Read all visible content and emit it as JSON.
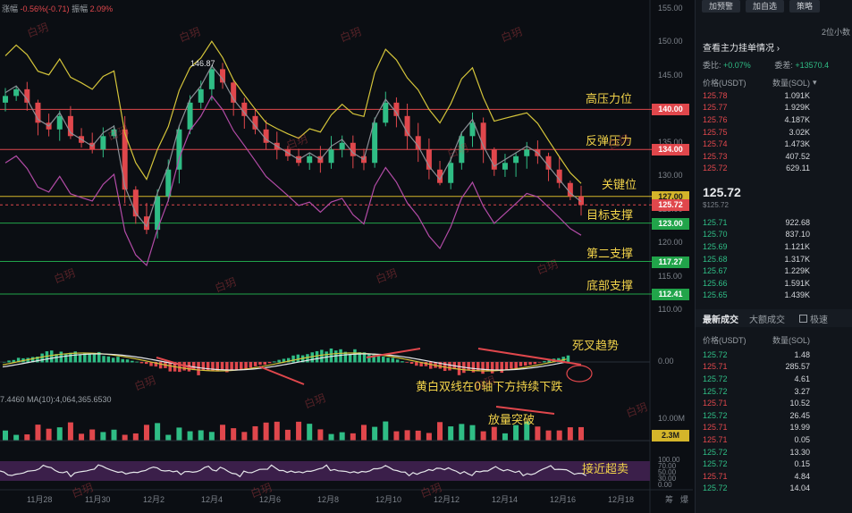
{
  "header": {
    "label_change": "涨幅",
    "change": "-0.56%(-0.71)",
    "label_amp": "振幅",
    "amp": "2.09%"
  },
  "price_axis": [
    "155.00",
    "150.00",
    "145.00",
    "140.00",
    "135.00",
    "130.00",
    "125.00",
    "120.00",
    "115.00",
    "110.00"
  ],
  "price_badges": [
    {
      "value": "140.00",
      "color": "#e0474c"
    },
    {
      "value": "134.00",
      "color": "#e0474c"
    },
    {
      "value": "127.00",
      "color": "#d4b52a"
    },
    {
      "value": "125.72",
      "color": "#e0474c"
    },
    {
      "value": "123.00",
      "color": "#21a44a"
    },
    {
      "value": "117.27",
      "color": "#21a44a"
    },
    {
      "value": "112.41",
      "color": "#21a44a"
    }
  ],
  "annotations": {
    "high_resistance": "高压力位",
    "rebound_resistance": "反弹压力",
    "key_level": "关键位",
    "target_support": "目标支撑",
    "second_support": "第二支撑",
    "bottom_support": "底部支撑",
    "death_cross": "死叉趋势",
    "macd_note": "黄白双线在0轴下方持续下跌",
    "volume_break": "放量突破",
    "near_oversold": "接近超卖"
  },
  "peak_label": "146.87",
  "macd_zero": "0.00",
  "volume": {
    "ma_label": "MA(10):4,064,365.6530",
    "left_value": "7.4460",
    "axis_top": "10.00M",
    "current": "2.3M"
  },
  "rsi_axis": [
    "100.00",
    "70.00",
    "50.00",
    "30.00",
    "0.00"
  ],
  "date_axis": [
    "11月28",
    "11月30",
    "12月2",
    "12月4",
    "12月6",
    "12月8",
    "12月10",
    "12月12",
    "12月14",
    "12月16",
    "12月18"
  ],
  "axis_tail": [
    "筹",
    "爆"
  ],
  "watermark": "白玥",
  "panel": {
    "buttons": [
      "加预警",
      "加自选",
      "策略"
    ],
    "precision": "2位小数",
    "main_orders": "查看主力挂单情况",
    "ratio_label": "委比:",
    "ratio_value": "+0.07%",
    "diff_label": "委差:",
    "diff_value": "+13570.4",
    "col_price": "价格(USDT)",
    "col_qty": "数量(SOL)",
    "asks": [
      {
        "p": "125.78",
        "q": "1.091K"
      },
      {
        "p": "125.77",
        "q": "1.929K"
      },
      {
        "p": "125.76",
        "q": "4.187K"
      },
      {
        "p": "125.75",
        "q": "3.02K"
      },
      {
        "p": "125.74",
        "q": "1.473K"
      },
      {
        "p": "125.73",
        "q": "407.52"
      },
      {
        "p": "125.72",
        "q": "629.11"
      }
    ],
    "last_price": "125.72",
    "last_price_usd": "$125.72",
    "bids": [
      {
        "p": "125.71",
        "q": "922.68"
      },
      {
        "p": "125.70",
        "q": "837.10"
      },
      {
        "p": "125.69",
        "q": "1.121K"
      },
      {
        "p": "125.68",
        "q": "1.317K"
      },
      {
        "p": "125.67",
        "q": "1.229K"
      },
      {
        "p": "125.66",
        "q": "1.591K"
      },
      {
        "p": "125.65",
        "q": "1.439K"
      }
    ],
    "tab_latest": "最新成交",
    "tab_large": "大额成交",
    "tab_check": "极速",
    "trades": [
      {
        "p": "125.72",
        "q": "1.48",
        "c": "g"
      },
      {
        "p": "125.71",
        "q": "285.57",
        "c": "r"
      },
      {
        "p": "125.72",
        "q": "4.61",
        "c": "g"
      },
      {
        "p": "125.72",
        "q": "3.27",
        "c": "g"
      },
      {
        "p": "125.71",
        "q": "10.52",
        "c": "r"
      },
      {
        "p": "125.72",
        "q": "26.45",
        "c": "g"
      },
      {
        "p": "125.71",
        "q": "19.99",
        "c": "r"
      },
      {
        "p": "125.71",
        "q": "0.05",
        "c": "r"
      },
      {
        "p": "125.72",
        "q": "13.30",
        "c": "g"
      },
      {
        "p": "125.72",
        "q": "0.15",
        "c": "g"
      },
      {
        "p": "125.71",
        "q": "4.84",
        "c": "r"
      },
      {
        "p": "125.72",
        "q": "14.04",
        "c": "g"
      }
    ]
  }
}
